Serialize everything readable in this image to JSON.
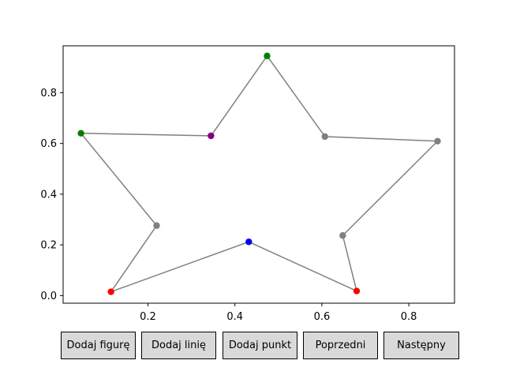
{
  "chart_data": {
    "type": "line",
    "title": "",
    "xlabel": "",
    "ylabel": "",
    "xlim": [
      0.005,
      0.905
    ],
    "ylim": [
      -0.03,
      0.985
    ],
    "grid": false,
    "x_ticks": [
      0.2,
      0.4,
      0.6,
      0.8
    ],
    "x_tick_labels": [
      "0.2",
      "0.4",
      "0.6",
      "0.8"
    ],
    "y_ticks": [
      0.0,
      0.2,
      0.4,
      0.6,
      0.8
    ],
    "y_tick_labels": [
      "0.0",
      "0.2",
      "0.4",
      "0.6",
      "0.8"
    ],
    "line_color": "#808080",
    "series": [
      {
        "closed": true,
        "points": [
          {
            "x": 0.474,
            "y": 0.945,
            "color": "#008000"
          },
          {
            "x": 0.607,
            "y": 0.627,
            "color": "#808080"
          },
          {
            "x": 0.866,
            "y": 0.609,
            "color": "#808080"
          },
          {
            "x": 0.648,
            "y": 0.237,
            "color": "#808080"
          },
          {
            "x": 0.68,
            "y": 0.018,
            "color": "#ff0000"
          },
          {
            "x": 0.432,
            "y": 0.212,
            "color": "#0000ff"
          },
          {
            "x": 0.115,
            "y": 0.015,
            "color": "#ff0000"
          },
          {
            "x": 0.22,
            "y": 0.276,
            "color": "#808080"
          },
          {
            "x": 0.046,
            "y": 0.64,
            "color": "#008000"
          },
          {
            "x": 0.345,
            "y": 0.63,
            "color": "#800080"
          }
        ]
      }
    ]
  },
  "buttons": [
    {
      "label": "Dodaj figurę"
    },
    {
      "label": "Dodaj linię"
    },
    {
      "label": "Dodaj punkt"
    },
    {
      "label": "Poprzedni"
    },
    {
      "label": "Następny"
    }
  ]
}
